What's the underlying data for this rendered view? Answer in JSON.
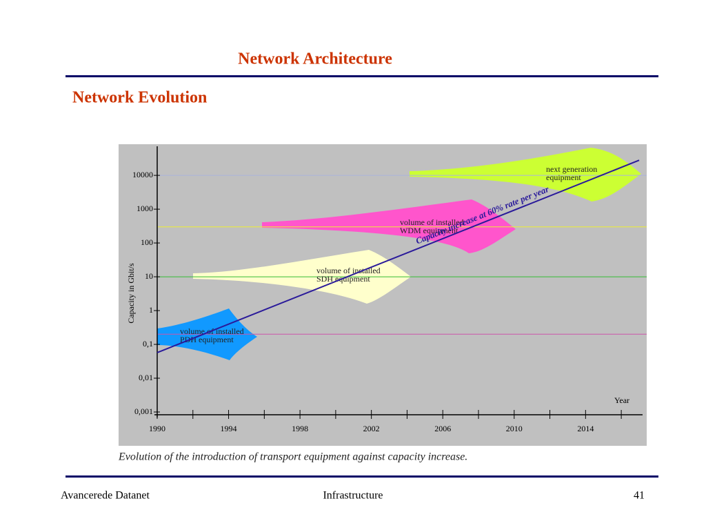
{
  "header": {
    "title": "Network Architecture",
    "subtitle": "Network Evolution"
  },
  "chart_data": {
    "type": "line",
    "y_label": "Capacity in Gbit/s",
    "x_label": "Year",
    "caption": "Evolution of the introduction of transport equipment against capacity increase.",
    "log_y": true,
    "xlim": [
      1990,
      2017
    ],
    "xticks": [
      1990,
      1994,
      1998,
      2002,
      2006,
      2010,
      2014
    ],
    "xminor_ticks": [
      1992,
      1996,
      2000,
      2004,
      2008,
      2012,
      2016
    ],
    "ylim": [
      0.001,
      60000
    ],
    "yticks": [
      {
        "value": 0.001,
        "label": "0,001"
      },
      {
        "value": 0.01,
        "label": "0,01"
      },
      {
        "value": 0.1,
        "label": "0,1"
      },
      1,
      10,
      100,
      1000,
      10000
    ],
    "series": [
      {
        "name": "Capacity increase at 60% rate per year",
        "color": "#2a1a9a",
        "x": [
          1990,
          2017
        ],
        "values": [
          0.057,
          28000
        ]
      }
    ],
    "reference_lines": [
      {
        "value": 0.2,
        "color": "#cc55aa"
      },
      {
        "value": 10,
        "color": "#33bb33"
      },
      {
        "value": 300,
        "color": "#eeee33"
      },
      {
        "value": 10000,
        "color": "#aab4dd"
      }
    ],
    "annotations": [
      {
        "lines": [
          "volume of installed",
          "PDH equipment"
        ],
        "color": "#1199ff"
      },
      {
        "lines": [
          "volume of installed",
          "SDH equipment"
        ],
        "color": "#ffffcc"
      },
      {
        "lines": [
          "volume of installed",
          "WDM equipment"
        ],
        "color": "#ff55cc"
      },
      {
        "lines": [
          "next generation",
          "equipment"
        ],
        "color": "#ccff33"
      }
    ]
  },
  "footer": {
    "left": "Avancerede Datanet",
    "center": "Infrastructure",
    "right": "41"
  }
}
